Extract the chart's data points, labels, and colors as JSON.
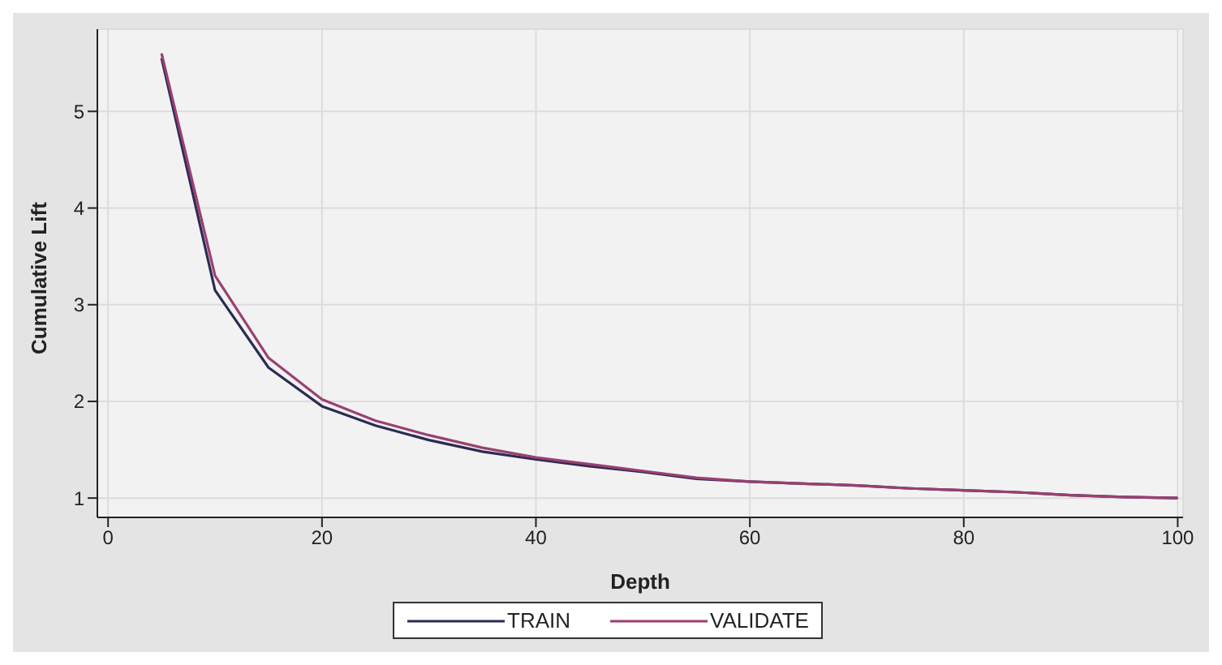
{
  "chart_data": {
    "type": "line",
    "xlabel": "Depth",
    "ylabel": "Cumulative Lift",
    "x": [
      5,
      10,
      15,
      20,
      25,
      30,
      35,
      40,
      45,
      50,
      55,
      60,
      65,
      70,
      75,
      80,
      85,
      90,
      95,
      100
    ],
    "series": [
      {
        "name": "TRAIN",
        "color": "#2b2b55",
        "values": [
          5.55,
          3.15,
          2.35,
          1.95,
          1.75,
          1.6,
          1.48,
          1.4,
          1.33,
          1.27,
          1.2,
          1.17,
          1.15,
          1.13,
          1.1,
          1.08,
          1.06,
          1.03,
          1.01,
          1.0
        ]
      },
      {
        "name": "VALIDATE",
        "color": "#9a4070",
        "values": [
          5.6,
          3.3,
          2.45,
          2.02,
          1.8,
          1.65,
          1.52,
          1.42,
          1.35,
          1.28,
          1.21,
          1.17,
          1.15,
          1.13,
          1.1,
          1.08,
          1.06,
          1.03,
          1.01,
          1.0
        ]
      }
    ],
    "xlim": [
      -1,
      100.5
    ],
    "xticks": [
      0,
      20,
      40,
      60,
      80,
      100
    ],
    "ylim": [
      0.8,
      5.85
    ],
    "yticks": [
      1,
      2,
      3,
      4,
      5
    ],
    "grid": true,
    "legend": "bottom",
    "marker": "none",
    "line_style": "solid"
  }
}
